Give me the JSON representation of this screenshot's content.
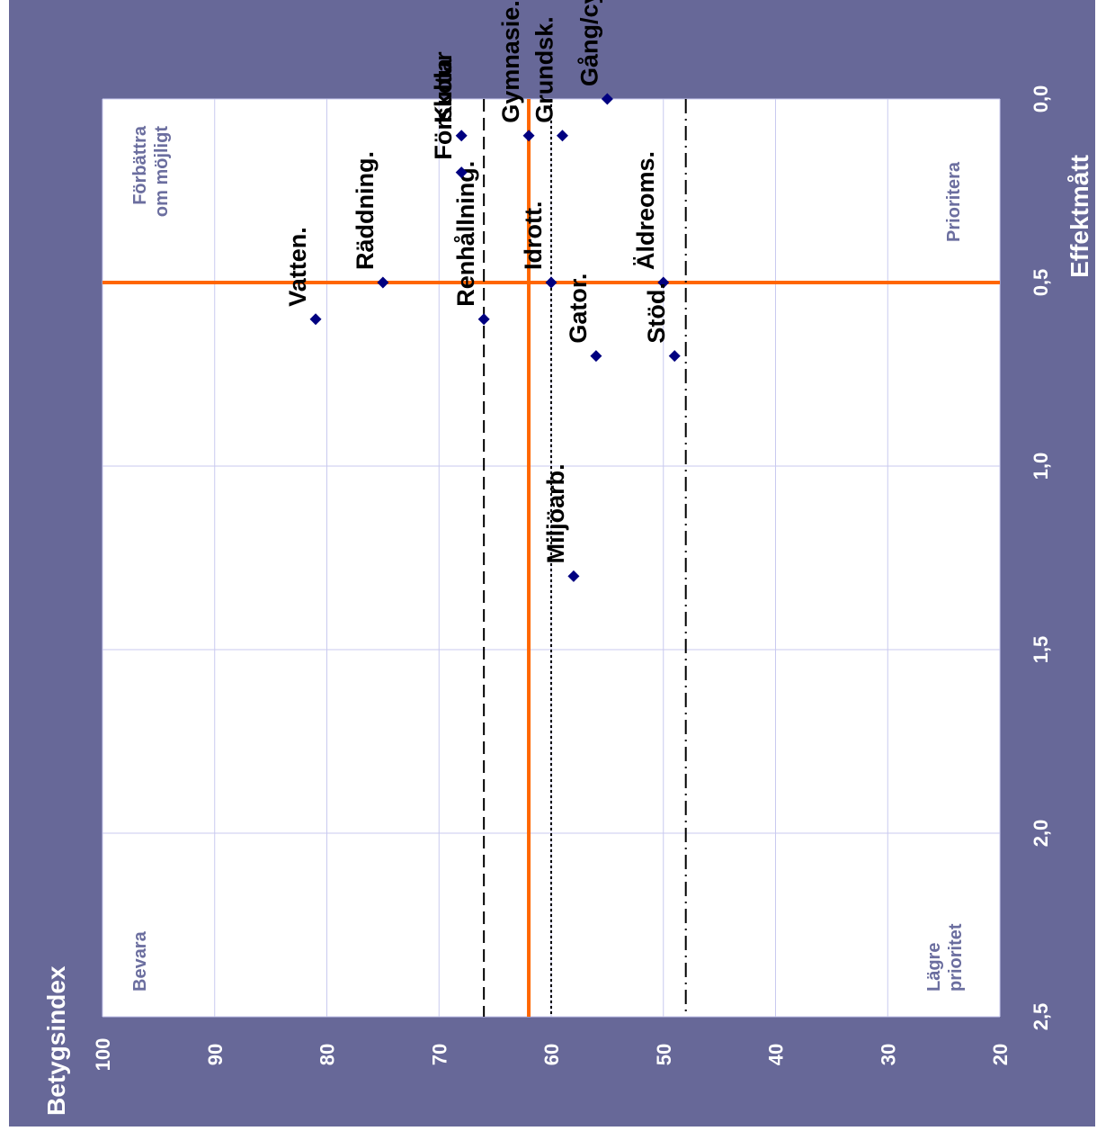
{
  "chart_data": {
    "type": "scatter",
    "x_axis": {
      "label": "Effektmått",
      "ticks": [
        "0,0",
        "0,5",
        "1,0",
        "1,5",
        "2,0",
        "2,5"
      ],
      "range": [
        0.0,
        2.5
      ]
    },
    "y_axis": {
      "label": "Betygsindex",
      "ticks": [
        "100",
        "90",
        "80",
        "70",
        "60",
        "50",
        "40",
        "30",
        "20"
      ],
      "range": [
        20,
        100
      ]
    },
    "grid": true,
    "quadrants": {
      "top_left": "Förbättra\nom möjligt",
      "bottom_left": "Prioritera",
      "top_right": "Bevara",
      "bottom_right": "Lägre\nprioritet"
    },
    "reference_lines": [
      {
        "axis": "x",
        "value": 0.5,
        "style": "solid",
        "color": "#ff6600"
      },
      {
        "axis": "y",
        "value": 62,
        "style": "solid",
        "color": "#ff6600"
      },
      {
        "axis": "y",
        "value": 66,
        "style": "dashed",
        "color": "#000000"
      },
      {
        "axis": "y",
        "value": 60,
        "style": "dotted",
        "color": "#000000"
      },
      {
        "axis": "y",
        "value": 48,
        "style": "dashdot",
        "color": "#000000"
      }
    ],
    "points": [
      {
        "label": "Vatten.",
        "x": 0.6,
        "y": 81
      },
      {
        "label": "Räddning.",
        "x": 0.5,
        "y": 75
      },
      {
        "label": "Renhållning.",
        "x": 0.6,
        "y": 66
      },
      {
        "label": "Förskola",
        "x": 0.2,
        "y": 68
      },
      {
        "label": "Kultur",
        "x": 0.1,
        "y": 68
      },
      {
        "label": "Idrott.",
        "x": 0.5,
        "y": 60
      },
      {
        "label": "Gymnasie.",
        "x": 0.1,
        "y": 62
      },
      {
        "label": "Grundsk.",
        "x": 0.1,
        "y": 59
      },
      {
        "label": "Gång/cykel.",
        "x": 0.0,
        "y": 55
      },
      {
        "label": "Miljöarb.",
        "x": 1.3,
        "y": 58
      },
      {
        "label": "Gator.",
        "x": 0.7,
        "y": 56
      },
      {
        "label": "Äldreoms.",
        "x": 0.5,
        "y": 50
      },
      {
        "label": "Stöd.",
        "x": 0.7,
        "y": 49
      }
    ]
  }
}
